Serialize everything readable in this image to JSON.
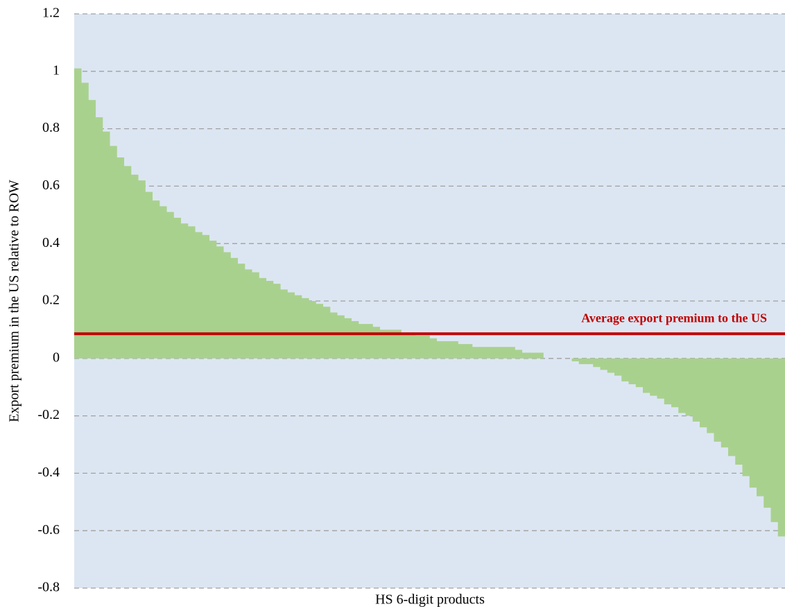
{
  "chart_data": {
    "type": "bar",
    "x_label": "HS 6-digit products",
    "y_label": "Export premium in the US relative to ROW",
    "color": "#a9d18e",
    "background": "#dce6f2",
    "grid": true,
    "ylim": [
      -0.8,
      1.2
    ],
    "yticks": [
      -0.8,
      -0.6,
      -0.4,
      -0.2,
      0,
      0.2,
      0.4,
      0.6,
      0.8,
      1,
      1.2
    ],
    "reference_line": {
      "value": 0.086,
      "label": "Average export premium to the US",
      "color": "#c00000"
    },
    "values": [
      1.01,
      0.96,
      0.9,
      0.84,
      0.79,
      0.74,
      0.7,
      0.67,
      0.64,
      0.62,
      0.58,
      0.55,
      0.53,
      0.51,
      0.49,
      0.47,
      0.46,
      0.44,
      0.43,
      0.41,
      0.39,
      0.37,
      0.35,
      0.33,
      0.31,
      0.3,
      0.28,
      0.27,
      0.26,
      0.24,
      0.23,
      0.22,
      0.21,
      0.2,
      0.19,
      0.18,
      0.16,
      0.15,
      0.14,
      0.13,
      0.12,
      0.12,
      0.11,
      0.1,
      0.1,
      0.1,
      0.09,
      0.09,
      0.08,
      0.08,
      0.07,
      0.06,
      0.06,
      0.06,
      0.05,
      0.05,
      0.04,
      0.04,
      0.04,
      0.04,
      0.04,
      0.04,
      0.03,
      0.02,
      0.02,
      0.02,
      0.0,
      0.0,
      0.0,
      0.0,
      -0.01,
      -0.02,
      -0.02,
      -0.03,
      -0.04,
      -0.05,
      -0.06,
      -0.08,
      -0.09,
      -0.1,
      -0.12,
      -0.13,
      -0.14,
      -0.16,
      -0.17,
      -0.19,
      -0.2,
      -0.22,
      -0.24,
      -0.26,
      -0.29,
      -0.31,
      -0.34,
      -0.37,
      -0.41,
      -0.45,
      -0.48,
      -0.52,
      -0.57,
      -0.62
    ]
  }
}
